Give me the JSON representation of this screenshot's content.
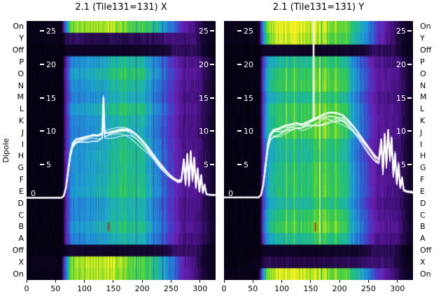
{
  "figure": {
    "background": "#ffffff",
    "y_axis_title": "Dipole",
    "row_labels": [
      "On",
      "Y",
      "Off",
      "P",
      "O",
      "N",
      "M",
      "L",
      "K",
      "J",
      "I",
      "H",
      "G",
      "F",
      "E",
      "D",
      "C",
      "B",
      "A",
      "Off",
      "X",
      "On"
    ],
    "inner_tick_values": [
      25,
      20,
      15,
      10,
      5
    ],
    "zero_label": "0",
    "inner_tick_color": "#ffffff",
    "overlay_color": "#ffffff",
    "text_color": "#000000",
    "colormap_stops": [
      [
        0.0,
        "#000003"
      ],
      [
        0.05,
        "#10052a"
      ],
      [
        0.1,
        "#2c0d56"
      ],
      [
        0.16,
        "#4b148a"
      ],
      [
        0.22,
        "#681fae"
      ],
      [
        0.3,
        "#4b3ac6"
      ],
      [
        0.4,
        "#2a6ad0"
      ],
      [
        0.5,
        "#1f96da"
      ],
      [
        0.6,
        "#1db4ae"
      ],
      [
        0.7,
        "#28c45e"
      ],
      [
        0.8,
        "#60d633"
      ],
      [
        0.9,
        "#b2e321"
      ],
      [
        1.0,
        "#f9f022"
      ]
    ]
  },
  "chart_data": [
    {
      "type": "heatmap",
      "title": "2.1 (Tile131=131) X",
      "x_range": [
        0,
        327
      ],
      "x_ticks": [
        0,
        50,
        100,
        150,
        200,
        250,
        300
      ],
      "line_y_ticks": [
        0,
        5,
        10,
        15,
        20,
        25
      ],
      "rows": [
        "On",
        "Y",
        "Off",
        "P",
        "O",
        "N",
        "M",
        "L",
        "K",
        "J",
        "I",
        "H",
        "G",
        "F",
        "E",
        "D",
        "C",
        "B",
        "A",
        "Off",
        "X",
        "On"
      ],
      "row_types": [
        "on",
        "dark",
        "off",
        "dipole",
        "dipole",
        "dipole",
        "dipole",
        "dipole",
        "dipole",
        "dipole",
        "dipole",
        "dipole",
        "dipole",
        "dipole",
        "dipole",
        "dipole",
        "dipole",
        "dipole",
        "dipole",
        "off",
        "bright",
        "on"
      ],
      "profiles": {
        "on": [
          [
            0,
            0.03
          ],
          [
            60,
            0.03
          ],
          [
            68,
            0.5
          ],
          [
            75,
            0.85
          ],
          [
            90,
            0.95
          ],
          [
            130,
            1.0
          ],
          [
            160,
            0.93
          ],
          [
            190,
            0.85
          ],
          [
            215,
            0.75
          ],
          [
            235,
            0.6
          ],
          [
            255,
            0.4
          ],
          [
            272,
            0.25
          ],
          [
            292,
            0.15
          ],
          [
            308,
            0.06
          ],
          [
            327,
            0.03
          ]
        ],
        "bright": [
          [
            0,
            0.03
          ],
          [
            60,
            0.03
          ],
          [
            68,
            0.45
          ],
          [
            75,
            0.78
          ],
          [
            90,
            0.9
          ],
          [
            130,
            0.95
          ],
          [
            160,
            0.88
          ],
          [
            190,
            0.8
          ],
          [
            215,
            0.7
          ],
          [
            235,
            0.55
          ],
          [
            255,
            0.38
          ],
          [
            272,
            0.22
          ],
          [
            292,
            0.13
          ],
          [
            308,
            0.05
          ],
          [
            327,
            0.03
          ]
        ],
        "off": [
          [
            0,
            0.02
          ],
          [
            62,
            0.02
          ],
          [
            70,
            0.05
          ],
          [
            150,
            0.04
          ],
          [
            240,
            0.06
          ],
          [
            258,
            0.11
          ],
          [
            295,
            0.1
          ],
          [
            310,
            0.04
          ],
          [
            327,
            0.02
          ]
        ],
        "dark": [
          [
            0,
            0.02
          ],
          [
            62,
            0.03
          ],
          [
            70,
            0.1
          ],
          [
            120,
            0.08
          ],
          [
            200,
            0.09
          ],
          [
            250,
            0.13
          ],
          [
            290,
            0.12
          ],
          [
            308,
            0.05
          ],
          [
            327,
            0.02
          ]
        ],
        "dipole": [
          [
            0,
            0.02
          ],
          [
            62,
            0.02
          ],
          [
            70,
            0.3
          ],
          [
            78,
            0.46
          ],
          [
            100,
            0.5
          ],
          [
            140,
            0.56
          ],
          [
            170,
            0.65
          ],
          [
            195,
            0.63
          ],
          [
            215,
            0.5
          ],
          [
            240,
            0.35
          ],
          [
            258,
            0.22
          ],
          [
            270,
            0.17
          ],
          [
            300,
            0.15
          ],
          [
            312,
            0.08
          ],
          [
            327,
            0.03
          ]
        ]
      },
      "overlay_points": [
        [
          0,
          0.05
        ],
        [
          60,
          0.05
        ],
        [
          64,
          0.3
        ],
        [
          68,
          1.5
        ],
        [
          72,
          4.2
        ],
        [
          76,
          6.8
        ],
        [
          80,
          8.2
        ],
        [
          86,
          8.8
        ],
        [
          95,
          9.0
        ],
        [
          105,
          9.2
        ],
        [
          115,
          9.4
        ],
        [
          123,
          9.3
        ],
        [
          131,
          9.6
        ],
        [
          133,
          15.0
        ],
        [
          135,
          9.7
        ],
        [
          142,
          9.8
        ],
        [
          152,
          10.0
        ],
        [
          162,
          10.25
        ],
        [
          172,
          10.3
        ],
        [
          180,
          10.1
        ],
        [
          188,
          9.6
        ],
        [
          196,
          8.9
        ],
        [
          206,
          7.9
        ],
        [
          216,
          6.7
        ],
        [
          226,
          5.5
        ],
        [
          236,
          4.5
        ],
        [
          246,
          3.6
        ],
        [
          254,
          3.0
        ],
        [
          262,
          2.6
        ],
        [
          268,
          2.8
        ],
        [
          272,
          5.8
        ],
        [
          275,
          2.2
        ],
        [
          278,
          6.6
        ],
        [
          281,
          2.0
        ],
        [
          284,
          7.0
        ],
        [
          287,
          2.8
        ],
        [
          290,
          6.0
        ],
        [
          293,
          1.6
        ],
        [
          296,
          4.4
        ],
        [
          299,
          1.0
        ],
        [
          302,
          3.4
        ],
        [
          305,
          0.8
        ],
        [
          308,
          2.0
        ],
        [
          311,
          0.6
        ],
        [
          316,
          0.5
        ],
        [
          327,
          0.45
        ]
      ],
      "overlay_line_count": 7,
      "vertical_spike_x": null,
      "rfi_marker": {
        "x": 141,
        "row_index": 17,
        "color": "#b23a10"
      }
    },
    {
      "type": "heatmap",
      "title": "2.1 (Tile131=131) Y",
      "x_range": [
        0,
        327
      ],
      "x_ticks": [
        0,
        50,
        100,
        150,
        200,
        250,
        300
      ],
      "line_y_ticks": [
        0,
        5,
        10,
        15,
        20,
        25
      ],
      "rows": [
        "On",
        "Y",
        "Off",
        "P",
        "O",
        "N",
        "M",
        "L",
        "K",
        "J",
        "I",
        "H",
        "G",
        "F",
        "E",
        "D",
        "C",
        "B",
        "A",
        "Off",
        "X",
        "On"
      ],
      "row_types": [
        "on",
        "bright",
        "off",
        "dipole",
        "dipole",
        "dipole",
        "dipole",
        "dipole",
        "dipole",
        "dipole",
        "dipole",
        "dipole",
        "dipole",
        "dipole",
        "dipole",
        "dipole",
        "dipole",
        "dipole",
        "dipole",
        "off",
        "dark",
        "on"
      ],
      "profiles": {
        "on": [
          [
            0,
            0.03
          ],
          [
            60,
            0.03
          ],
          [
            68,
            0.5
          ],
          [
            75,
            0.85
          ],
          [
            90,
            0.95
          ],
          [
            130,
            1.0
          ],
          [
            160,
            0.93
          ],
          [
            190,
            0.85
          ],
          [
            215,
            0.75
          ],
          [
            235,
            0.6
          ],
          [
            255,
            0.4
          ],
          [
            272,
            0.25
          ],
          [
            292,
            0.15
          ],
          [
            308,
            0.06
          ],
          [
            327,
            0.03
          ]
        ],
        "bright": [
          [
            0,
            0.03
          ],
          [
            60,
            0.03
          ],
          [
            68,
            0.45
          ],
          [
            75,
            0.78
          ],
          [
            90,
            0.9
          ],
          [
            130,
            0.95
          ],
          [
            160,
            0.88
          ],
          [
            190,
            0.8
          ],
          [
            215,
            0.7
          ],
          [
            235,
            0.55
          ],
          [
            255,
            0.38
          ],
          [
            272,
            0.22
          ],
          [
            292,
            0.13
          ],
          [
            308,
            0.05
          ],
          [
            327,
            0.03
          ]
        ],
        "off": [
          [
            0,
            0.02
          ],
          [
            62,
            0.02
          ],
          [
            70,
            0.05
          ],
          [
            150,
            0.04
          ],
          [
            240,
            0.06
          ],
          [
            258,
            0.11
          ],
          [
            295,
            0.1
          ],
          [
            310,
            0.04
          ],
          [
            327,
            0.02
          ]
        ],
        "dark": [
          [
            0,
            0.02
          ],
          [
            62,
            0.03
          ],
          [
            70,
            0.1
          ],
          [
            120,
            0.08
          ],
          [
            200,
            0.09
          ],
          [
            250,
            0.13
          ],
          [
            290,
            0.12
          ],
          [
            308,
            0.05
          ],
          [
            327,
            0.02
          ]
        ],
        "dipole": [
          [
            0,
            0.02
          ],
          [
            62,
            0.02
          ],
          [
            70,
            0.4
          ],
          [
            78,
            0.58
          ],
          [
            100,
            0.63
          ],
          [
            130,
            0.66
          ],
          [
            160,
            0.72
          ],
          [
            195,
            0.72
          ],
          [
            215,
            0.58
          ],
          [
            235,
            0.4
          ],
          [
            255,
            0.24
          ],
          [
            268,
            0.17
          ],
          [
            300,
            0.15
          ],
          [
            312,
            0.08
          ],
          [
            327,
            0.03
          ]
        ]
      },
      "overlay_points": [
        [
          0,
          0.1
        ],
        [
          60,
          0.1
        ],
        [
          64,
          0.5
        ],
        [
          68,
          2.0
        ],
        [
          72,
          5.0
        ],
        [
          76,
          8.0
        ],
        [
          80,
          9.5
        ],
        [
          86,
          10.2
        ],
        [
          95,
          10.4
        ],
        [
          105,
          10.8
        ],
        [
          115,
          11.0
        ],
        [
          125,
          11.2
        ],
        [
          135,
          11.0
        ],
        [
          145,
          11.4
        ],
        [
          155,
          11.8
        ],
        [
          165,
          12.2
        ],
        [
          175,
          12.6
        ],
        [
          185,
          12.8
        ],
        [
          195,
          12.7
        ],
        [
          205,
          12.4
        ],
        [
          215,
          11.6
        ],
        [
          225,
          10.6
        ],
        [
          235,
          9.4
        ],
        [
          245,
          8.2
        ],
        [
          255,
          7.0
        ],
        [
          262,
          6.2
        ],
        [
          268,
          5.8
        ],
        [
          272,
          8.8
        ],
        [
          275,
          4.0
        ],
        [
          278,
          9.6
        ],
        [
          281,
          5.0
        ],
        [
          284,
          10.2
        ],
        [
          287,
          6.0
        ],
        [
          290,
          9.0
        ],
        [
          293,
          3.4
        ],
        [
          296,
          6.6
        ],
        [
          299,
          2.2
        ],
        [
          302,
          5.0
        ],
        [
          305,
          1.6
        ],
        [
          308,
          3.0
        ],
        [
          311,
          1.2
        ],
        [
          316,
          1.0
        ],
        [
          327,
          0.9
        ]
      ],
      "overlay_line_count": 7,
      "vertical_spike_x": 155,
      "rfi_marker": {
        "x": 157,
        "row_index": 17,
        "color": "#b23a10"
      }
    }
  ]
}
